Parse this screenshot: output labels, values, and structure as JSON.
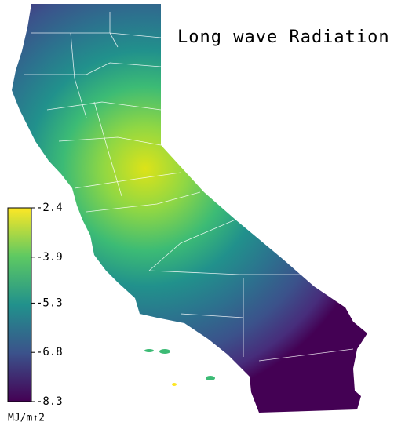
{
  "title": "Long wave Radiation",
  "colorbar": {
    "lim": [
      -8.3,
      -2.4
    ],
    "ticks": [
      -2.4,
      -3.9,
      -5.3,
      -6.8,
      -8.3
    ],
    "label": "MJ/m↑2"
  }
}
